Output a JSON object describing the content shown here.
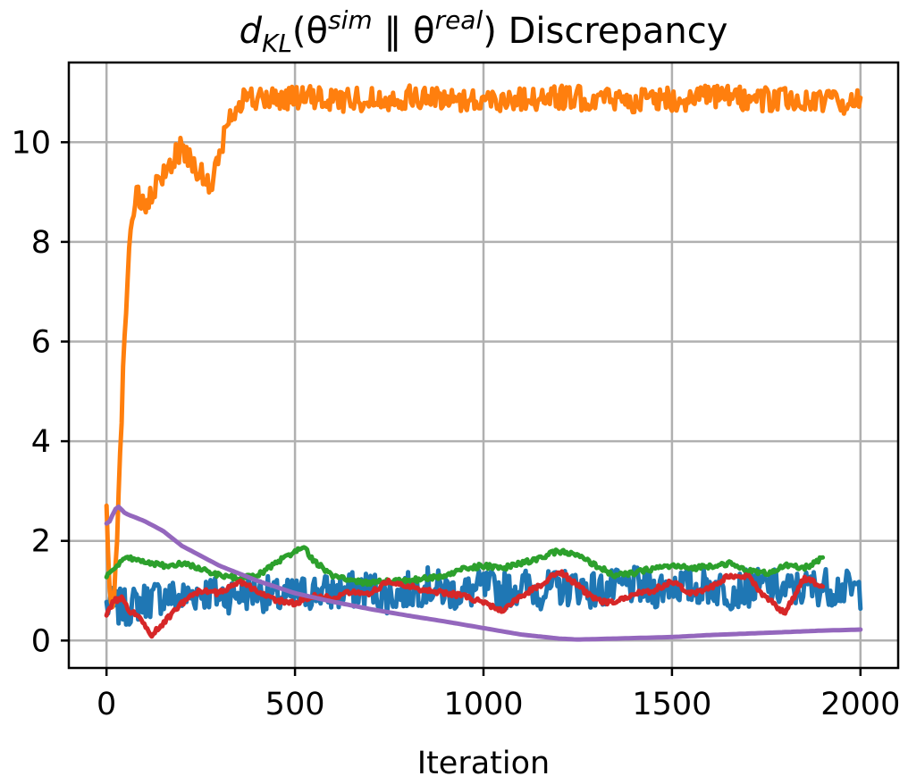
{
  "chart_data": {
    "type": "line",
    "title": "d_KL(θ^sim ‖ θ^real) Discrepancy",
    "title_parts": {
      "d": "d",
      "kl": "KL",
      "open": "(θ",
      "sim": "sim",
      "sep": " ‖ θ",
      "real": "real",
      "close": ") Discrepancy"
    },
    "xlabel": "Iteration",
    "ylabel": "",
    "xlim": [
      -100,
      2100
    ],
    "ylim": [
      -0.55,
      11.6
    ],
    "xticks": [
      0,
      500,
      1000,
      1500,
      2000
    ],
    "xtick_labels": [
      "0",
      "500",
      "1000",
      "1500",
      "2000"
    ],
    "yticks": [
      0,
      2,
      4,
      6,
      8,
      10
    ],
    "ytick_labels": [
      "0",
      "2",
      "4",
      "6",
      "8",
      "10"
    ],
    "grid": true,
    "legend": "none",
    "series": [
      {
        "color": "#1f77b4",
        "x": [
          0,
          50,
          100,
          150,
          200,
          250,
          300,
          350,
          400,
          450,
          500,
          550,
          600,
          650,
          700,
          750,
          800,
          850,
          900,
          950,
          1000,
          1050,
          1100,
          1150,
          1200,
          1250,
          1300,
          1350,
          1400,
          1450,
          1500,
          1550,
          1600,
          1650,
          1700,
          1750,
          1800,
          1850,
          1900,
          1950,
          2000
        ],
        "y": [
          0.7,
          0.65,
          0.8,
          0.9,
          0.85,
          1.0,
          0.9,
          0.95,
          1.0,
          0.85,
          0.9,
          1.0,
          0.95,
          1.0,
          1.05,
          0.9,
          1.0,
          1.1,
          1.0,
          0.95,
          1.05,
          1.0,
          1.1,
          1.0,
          1.05,
          1.1,
          1.0,
          1.05,
          1.1,
          1.0,
          1.15,
          1.05,
          1.1,
          1.0,
          1.05,
          1.1,
          1.0,
          1.05,
          1.1,
          1.05,
          1.0
        ],
        "noise": 0.38
      },
      {
        "color": "#ff7f0e",
        "x": [
          0,
          10,
          20,
          30,
          40,
          50,
          60,
          70,
          80,
          90,
          100,
          120,
          140,
          160,
          180,
          200,
          220,
          240,
          260,
          280,
          300,
          320,
          340,
          360,
          400,
          500,
          600,
          800,
          1000,
          1200,
          1400,
          1600,
          1800,
          2000
        ],
        "y": [
          2.5,
          0.7,
          1.0,
          2.5,
          4.5,
          6.5,
          7.9,
          8.6,
          9.0,
          8.8,
          8.6,
          8.9,
          9.2,
          9.5,
          9.7,
          9.9,
          9.7,
          9.5,
          9.2,
          9.1,
          9.8,
          10.3,
          10.7,
          10.9,
          10.85,
          10.9,
          10.85,
          10.9,
          10.85,
          10.9,
          10.85,
          10.9,
          10.85,
          10.8
        ],
        "noise": 0.25
      },
      {
        "color": "#2ca02c",
        "x": [
          0,
          30,
          50,
          100,
          150,
          200,
          250,
          300,
          350,
          400,
          450,
          500,
          520,
          550,
          600,
          650,
          700,
          750,
          800,
          850,
          900,
          950,
          1000,
          1050,
          1100,
          1150,
          1200,
          1250,
          1300,
          1350,
          1400,
          1450,
          1500,
          1550,
          1600,
          1650,
          1700,
          1750,
          1800,
          1850,
          1900
        ],
        "y": [
          1.3,
          1.5,
          1.65,
          1.6,
          1.5,
          1.55,
          1.45,
          1.3,
          1.25,
          1.3,
          1.55,
          1.8,
          1.9,
          1.6,
          1.3,
          1.2,
          1.15,
          1.2,
          1.2,
          1.25,
          1.3,
          1.45,
          1.5,
          1.45,
          1.55,
          1.65,
          1.8,
          1.7,
          1.5,
          1.3,
          1.35,
          1.45,
          1.5,
          1.45,
          1.5,
          1.55,
          1.4,
          1.35,
          1.5,
          1.45,
          1.65
        ],
        "noise": 0.05
      },
      {
        "color": "#d62728",
        "x": [
          0,
          20,
          40,
          60,
          80,
          100,
          120,
          150,
          200,
          250,
          300,
          350,
          400,
          450,
          500,
          550,
          600,
          650,
          700,
          750,
          800,
          850,
          900,
          950,
          1000,
          1050,
          1100,
          1150,
          1200,
          1250,
          1300,
          1350,
          1400,
          1450,
          1500,
          1550,
          1600,
          1650,
          1700,
          1750,
          1800,
          1850,
          1900
        ],
        "y": [
          0.5,
          0.8,
          0.85,
          0.6,
          0.55,
          0.3,
          0.1,
          0.35,
          0.75,
          1.0,
          0.95,
          1.2,
          1.0,
          0.8,
          0.75,
          0.9,
          0.85,
          1.0,
          0.95,
          1.2,
          1.1,
          1.0,
          0.95,
          0.9,
          0.75,
          0.6,
          0.9,
          1.1,
          1.4,
          1.1,
          0.8,
          0.75,
          0.95,
          1.0,
          1.2,
          0.95,
          1.05,
          1.3,
          1.3,
          0.85,
          0.55,
          1.25,
          1.1
        ],
        "noise": 0.05
      },
      {
        "color": "#9467bd",
        "x": [
          0,
          10,
          20,
          30,
          50,
          100,
          150,
          200,
          300,
          400,
          500,
          600,
          700,
          800,
          900,
          1000,
          1100,
          1200,
          1250,
          1300,
          1400,
          1500,
          1600,
          1700,
          1800,
          1900,
          2000
        ],
        "y": [
          2.35,
          2.4,
          2.6,
          2.7,
          2.55,
          2.4,
          2.2,
          1.9,
          1.5,
          1.2,
          0.95,
          0.78,
          0.63,
          0.5,
          0.38,
          0.25,
          0.12,
          0.04,
          0.02,
          0.03,
          0.05,
          0.07,
          0.11,
          0.14,
          0.17,
          0.2,
          0.22
        ],
        "noise": 0
      }
    ]
  }
}
